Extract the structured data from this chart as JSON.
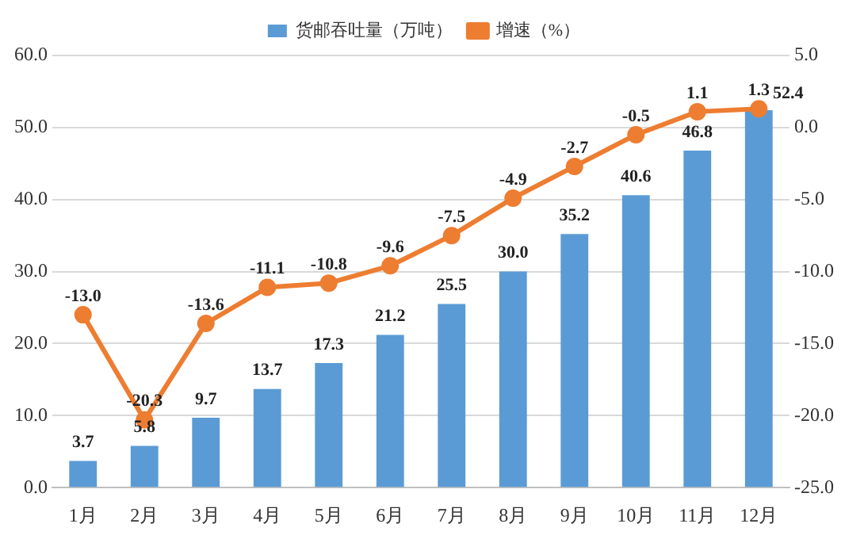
{
  "chart_data": {
    "type": "bar",
    "categories": [
      "1月",
      "2月",
      "3月",
      "4月",
      "5月",
      "6月",
      "7月",
      "8月",
      "9月",
      "10月",
      "11月",
      "12月"
    ],
    "series": [
      {
        "name": "货邮吞吐量（万吨）",
        "color": "#5b9bd5",
        "values": [
          3.7,
          5.8,
          9.7,
          13.7,
          17.3,
          21.2,
          25.5,
          30.0,
          35.2,
          40.6,
          46.8,
          52.4
        ],
        "value_labels": [
          "3.7",
          "5.8",
          "9.7",
          "13.7",
          "17.3",
          "21.2",
          "25.5",
          "30.0",
          "35.2",
          "40.6",
          "46.8",
          "52.4"
        ]
      },
      {
        "name": "增速（%）",
        "type": "line",
        "axis": "y2",
        "color": "#ed7d31",
        "values": [
          -13.0,
          -20.3,
          -13.6,
          -11.1,
          -10.8,
          -9.6,
          -7.5,
          -4.9,
          -2.7,
          -0.5,
          1.1,
          1.3
        ],
        "value_labels": [
          "-13.0",
          "-20.3",
          "-13.6",
          "-11.1",
          "-10.8",
          "-9.6",
          "-7.5",
          "-4.9",
          "-2.7",
          "-0.5",
          "1.1",
          "1.3"
        ]
      }
    ],
    "ylim": [
      0,
      60
    ],
    "yticks": [
      {
        "value": 0,
        "label": "0.0"
      },
      {
        "value": 10,
        "label": "10.0"
      },
      {
        "value": 20,
        "label": "20.0"
      },
      {
        "value": 30,
        "label": "30.0"
      },
      {
        "value": 40,
        "label": "40.0"
      },
      {
        "value": 50,
        "label": "50.0"
      },
      {
        "value": 60,
        "label": "60.0"
      }
    ],
    "y2lim": [
      -25,
      5
    ],
    "y2ticks": [
      {
        "value": -25,
        "label": "-25.0"
      },
      {
        "value": -20,
        "label": "-20.0"
      },
      {
        "value": -15,
        "label": "-15.0"
      },
      {
        "value": -10,
        "label": "-10.0"
      },
      {
        "value": -5,
        "label": "-5.0"
      },
      {
        "value": 0,
        "label": "0.0"
      },
      {
        "value": 5,
        "label": "5.0"
      }
    ],
    "grid": "y",
    "legend": "top",
    "marker": "circle",
    "line_style": "solid"
  }
}
